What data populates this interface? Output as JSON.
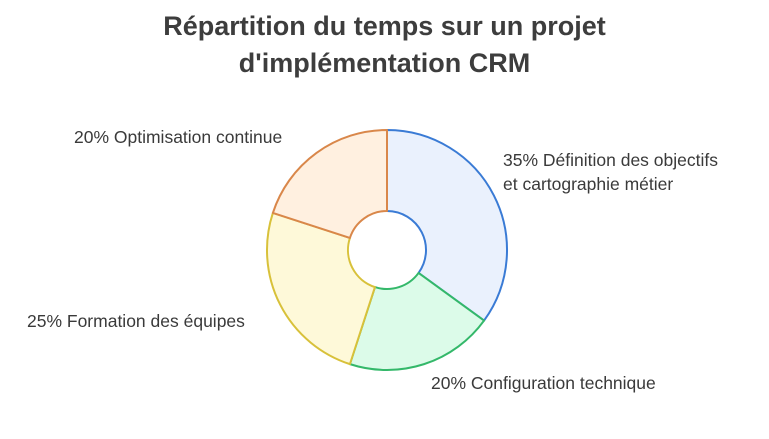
{
  "chart_data": {
    "type": "pie",
    "variant": "donut",
    "title_lines": [
      "Répartition du temps sur un projet",
      "d'implémentation CRM"
    ],
    "categories": [
      "Définition des objectifs et cartographie métier",
      "Configuration technique",
      "Formation des équipes",
      "Optimisation continue"
    ],
    "values": [
      35,
      20,
      25,
      20
    ],
    "labels": [
      [
        "35% Définition des objectifs",
        "et cartographie métier"
      ],
      [
        "20% Configuration technique"
      ],
      [
        "25% Formation des équipes"
      ],
      [
        "20% Optimisation continue"
      ]
    ],
    "fill_colors": [
      "#eaf1fd",
      "#dcfbe9",
      "#fef9d9",
      "#fff0e0"
    ],
    "stroke_colors": [
      "#3a7bd5",
      "#34b86a",
      "#d8c13a",
      "#d9874a"
    ]
  }
}
